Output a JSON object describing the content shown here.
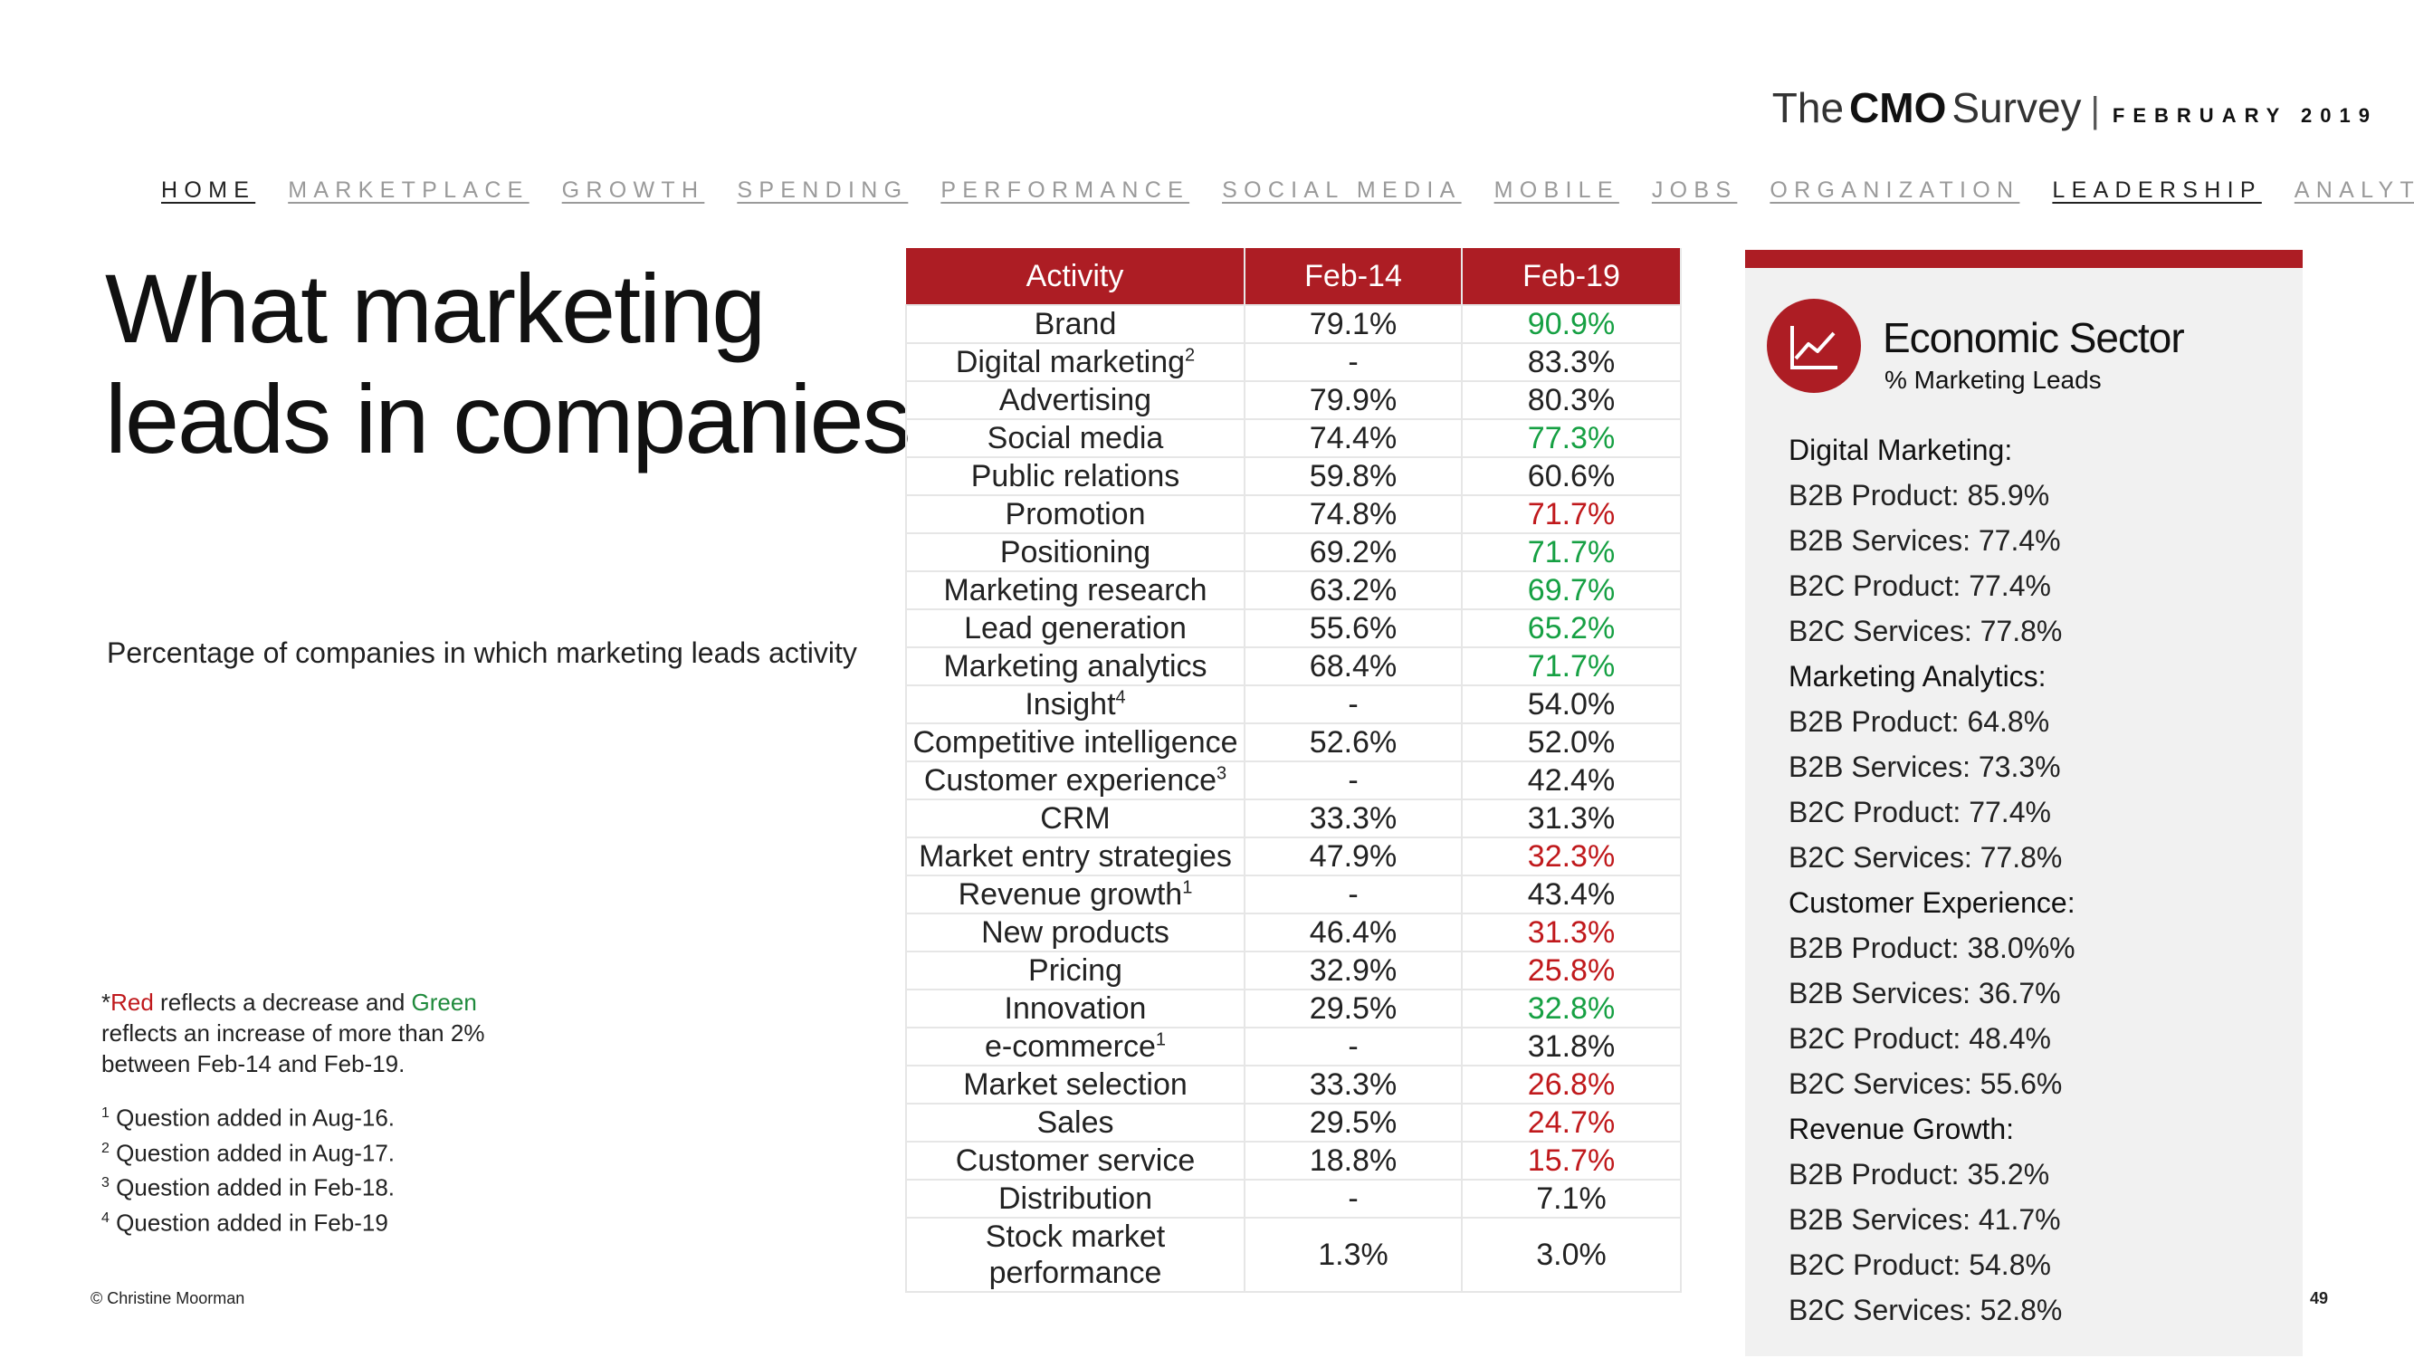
{
  "brand": {
    "the": "The",
    "cmo": "CMO",
    "survey": "Survey",
    "separator": "|",
    "date": "FEBRUARY 2019"
  },
  "nav": [
    "HOME",
    "MARKETPLACE",
    "GROWTH",
    "SPENDING",
    "PERFORMANCE",
    "SOCIAL MEDIA",
    "MOBILE",
    "JOBS",
    "ORGANIZATION",
    "LEADERSHIP",
    "ANALYTICS"
  ],
  "title": {
    "line1": "What marketing",
    "line2": "leads in companies"
  },
  "subtitle": "Percentage of companies in which marketing leads activity",
  "legend": {
    "prefix": "*",
    "red": "Red",
    "mid": " reflects a decrease and ",
    "green": "Green",
    "line2": "reflects an increase of more than 2%",
    "line3": "between Feb-14 and Feb-19."
  },
  "footnotes": [
    {
      "num": "1",
      "text": " Question added in Aug-16."
    },
    {
      "num": "2",
      "text": " Question added in Aug-17."
    },
    {
      "num": "3",
      "text": " Question added in Feb-18."
    },
    {
      "num": "4",
      "text": " Question added in Feb-19"
    }
  ],
  "copyright": "© Christine Moorman",
  "page_number": "49",
  "table": {
    "headers": [
      "Activity",
      "Feb-14",
      "Feb-19"
    ],
    "rows": [
      {
        "activity": "Brand",
        "sup": "",
        "feb14": "79.1%",
        "feb19": "90.9%",
        "change": "up"
      },
      {
        "activity": "Digital marketing",
        "sup": "2",
        "feb14": "-",
        "feb19": "83.3%",
        "change": ""
      },
      {
        "activity": "Advertising",
        "sup": "",
        "feb14": "79.9%",
        "feb19": "80.3%",
        "change": ""
      },
      {
        "activity": "Social media",
        "sup": "",
        "feb14": "74.4%",
        "feb19": "77.3%",
        "change": "up"
      },
      {
        "activity": "Public relations",
        "sup": "",
        "feb14": "59.8%",
        "feb19": "60.6%",
        "change": ""
      },
      {
        "activity": "Promotion",
        "sup": "",
        "feb14": "74.8%",
        "feb19": "71.7%",
        "change": "down"
      },
      {
        "activity": "Positioning",
        "sup": "",
        "feb14": "69.2%",
        "feb19": "71.7%",
        "change": "up"
      },
      {
        "activity": "Marketing research",
        "sup": "",
        "feb14": "63.2%",
        "feb19": "69.7%",
        "change": "up"
      },
      {
        "activity": "Lead generation",
        "sup": "",
        "feb14": "55.6%",
        "feb19": "65.2%",
        "change": "up"
      },
      {
        "activity": "Marketing analytics",
        "sup": "",
        "feb14": "68.4%",
        "feb19": "71.7%",
        "change": "up"
      },
      {
        "activity": "Insight",
        "sup": "4",
        "feb14": "-",
        "feb19": "54.0%",
        "change": ""
      },
      {
        "activity": "Competitive intelligence",
        "sup": "",
        "feb14": "52.6%",
        "feb19": "52.0%",
        "change": ""
      },
      {
        "activity": "Customer experience",
        "sup": "3",
        "feb14": "-",
        "feb19": "42.4%",
        "change": ""
      },
      {
        "activity": "CRM",
        "sup": "",
        "feb14": "33.3%",
        "feb19": "31.3%",
        "change": ""
      },
      {
        "activity": "Market entry strategies",
        "sup": "",
        "feb14": "47.9%",
        "feb19": "32.3%",
        "change": "down"
      },
      {
        "activity": "Revenue growth",
        "sup": "1",
        "feb14": "-",
        "feb19": "43.4%",
        "change": ""
      },
      {
        "activity": "New products",
        "sup": "",
        "feb14": "46.4%",
        "feb19": "31.3%",
        "change": "down"
      },
      {
        "activity": "Pricing",
        "sup": "",
        "feb14": "32.9%",
        "feb19": "25.8%",
        "change": "down"
      },
      {
        "activity": "Innovation",
        "sup": "",
        "feb14": "29.5%",
        "feb19": "32.8%",
        "change": "up"
      },
      {
        "activity": "e-commerce",
        "sup": "1",
        "feb14": "-",
        "feb19": "31.8%",
        "change": ""
      },
      {
        "activity": "Market selection",
        "sup": "",
        "feb14": "33.3%",
        "feb19": "26.8%",
        "change": "down"
      },
      {
        "activity": "Sales",
        "sup": "",
        "feb14": "29.5%",
        "feb19": "24.7%",
        "change": "down"
      },
      {
        "activity": "Customer service",
        "sup": "",
        "feb14": "18.8%",
        "feb19": "15.7%",
        "change": "down"
      },
      {
        "activity": "Distribution",
        "sup": "",
        "feb14": "-",
        "feb19": "7.1%",
        "change": ""
      },
      {
        "activity": "Stock market",
        "activity2": "performance",
        "sup": "",
        "feb14": "1.3%",
        "feb19": "3.0%",
        "change": ""
      }
    ]
  },
  "panel": {
    "icon": "trend-line-chart-icon",
    "heading": "Economic Sector",
    "subheading": "% Marketing Leads",
    "items": [
      {
        "text": "Digital Marketing:",
        "head": true
      },
      {
        "text": "B2B Product: 85.9%",
        "head": false
      },
      {
        "text": "B2B Services: 77.4%",
        "head": false
      },
      {
        "text": "B2C Product: 77.4%",
        "head": false
      },
      {
        "text": "B2C Services: 77.8%",
        "head": false
      },
      {
        "text": "Marketing Analytics:",
        "head": true
      },
      {
        "text": "B2B Product: 64.8%",
        "head": false
      },
      {
        "text": "B2B Services: 73.3%",
        "head": false
      },
      {
        "text": "B2C Product: 77.4%",
        "head": false
      },
      {
        "text": "B2C Services: 77.8%",
        "head": false
      },
      {
        "text": "Customer Experience:",
        "head": true
      },
      {
        "text": "B2B Product: 38.0%%",
        "head": false
      },
      {
        "text": "B2B Services: 36.7%",
        "head": false
      },
      {
        "text": "B2C Product: 48.4%",
        "head": false
      },
      {
        "text": "B2C Services: 55.6%",
        "head": false
      },
      {
        "text": "Revenue Growth:",
        "head": true
      },
      {
        "text": "B2B Product: 35.2%",
        "head": false
      },
      {
        "text": "B2B Services: 41.7%",
        "head": false
      },
      {
        "text": "B2C Product: 54.8%",
        "head": false
      },
      {
        "text": "B2C Services: 52.8%",
        "head": false
      }
    ]
  },
  "colors": {
    "accent": "#ad1d24",
    "increase": "#16a043",
    "decrease": "#c0191c",
    "panel_bg": "#f1f1f1"
  }
}
